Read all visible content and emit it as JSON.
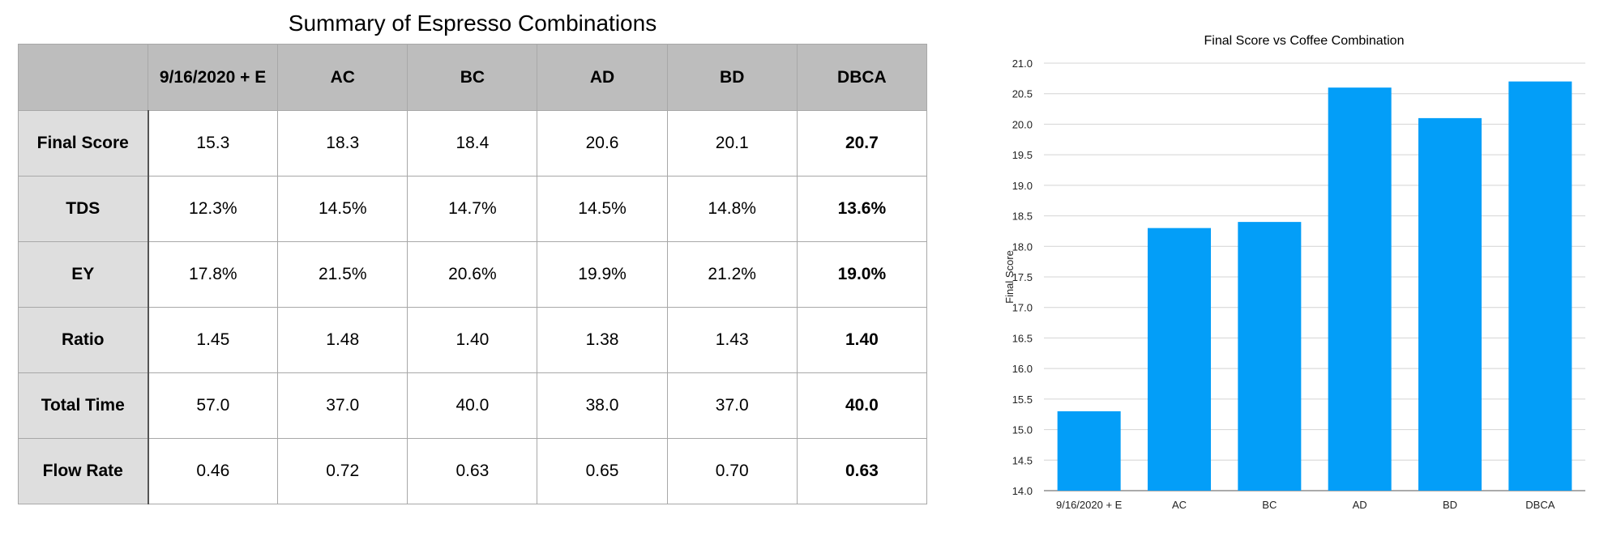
{
  "table": {
    "title": "Summary of Espresso Combinations",
    "corner": "",
    "columns": [
      "9/16/2020 + E",
      "AC",
      "BC",
      "AD",
      "BD",
      "DBCA"
    ],
    "rows": [
      {
        "label": "Final Score",
        "values": [
          "15.3",
          "18.3",
          "18.4",
          "20.6",
          "20.1",
          "20.7"
        ]
      },
      {
        "label": "TDS",
        "values": [
          "12.3%",
          "14.5%",
          "14.7%",
          "14.5%",
          "14.8%",
          "13.6%"
        ]
      },
      {
        "label": "EY",
        "values": [
          "17.8%",
          "21.5%",
          "20.6%",
          "19.9%",
          "21.2%",
          "19.0%"
        ]
      },
      {
        "label": "Ratio",
        "values": [
          "1.45",
          "1.48",
          "1.40",
          "1.38",
          "1.43",
          "1.40"
        ]
      },
      {
        "label": "Total Time",
        "values": [
          "57.0",
          "37.0",
          "40.0",
          "38.0",
          "37.0",
          "40.0"
        ]
      },
      {
        "label": "Flow Rate",
        "values": [
          "0.46",
          "0.72",
          "0.63",
          "0.65",
          "0.70",
          "0.63"
        ]
      }
    ]
  },
  "chart_data": {
    "type": "bar",
    "title": "Final Score vs Coffee Combination",
    "xlabel": "",
    "ylabel": "Final Score",
    "categories": [
      "9/16/2020 + E",
      "AC",
      "BC",
      "AD",
      "BD",
      "DBCA"
    ],
    "values": [
      15.3,
      18.3,
      18.4,
      20.6,
      20.1,
      20.7
    ],
    "ylim": [
      14.0,
      21.0
    ],
    "yticks": [
      "14.0",
      "14.5",
      "15.0",
      "15.5",
      "16.0",
      "16.5",
      "17.0",
      "17.5",
      "18.0",
      "18.5",
      "19.0",
      "19.5",
      "20.0",
      "20.5",
      "21.0"
    ],
    "grid": true,
    "legend": "none",
    "bar_color": "#039ef8"
  }
}
